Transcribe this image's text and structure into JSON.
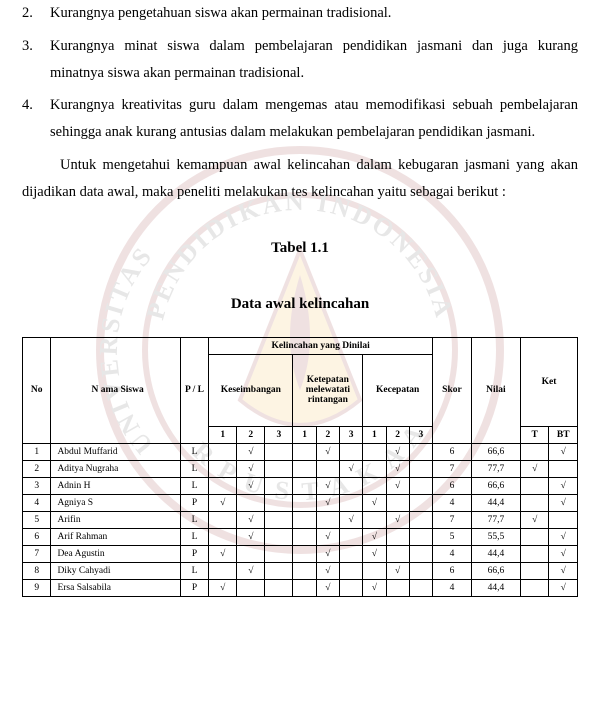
{
  "list": [
    {
      "n": "2.",
      "t": "Kurangnya pengetahuan siswa akan permainan tradisional."
    },
    {
      "n": "3.",
      "t": "Kurangnya minat siswa dalam pembelajaran  pendidikan jasmani dan juga kurang minatnya siswa akan permainan tradisional."
    },
    {
      "n": "4.",
      "t": "Kurangnya kreativitas guru dalam mengemas atau memodifikasi sebuah pembelajaran sehingga anak kurang antusias dalam melakukan pembelajaran pendidikan jasmani."
    }
  ],
  "paragraph": "Untuk mengetahui kemampuan awal kelincahan dalam kebugaran jasmani yang akan dijadikan data awal, maka peneliti melakukan tes kelincahan yaitu sebagai berikut :",
  "table_label": "Tabel 1.1",
  "table_title": "Data awal kelincahan",
  "headers": {
    "no": "No",
    "nama": "N ama Siswa",
    "pl": "P / L",
    "group": "Kelincahan yang Dinilai",
    "kes": "Keseimbangan",
    "ket": "Ketepatan melewatati rintangan",
    "kec": "Kecepatan",
    "skor": "Skor",
    "nilai": "Nilai",
    "ketr": "Ket",
    "t": "T",
    "bt": "BT"
  },
  "rows": [
    {
      "no": "1",
      "name": "Abdul Muffarid",
      "pl": "L",
      "k": [
        "",
        "√",
        "",
        "",
        "√",
        "",
        "",
        "√",
        ""
      ],
      "skor": "6",
      "nilai": "66,6",
      "t": "",
      "bt": "√"
    },
    {
      "no": "2",
      "name": "Aditya Nugraha",
      "pl": "L",
      "k": [
        "",
        "√",
        "",
        "",
        "",
        "√",
        "",
        "√",
        ""
      ],
      "skor": "7",
      "nilai": "77,7",
      "t": "√",
      "bt": ""
    },
    {
      "no": "3",
      "name": "Adnin H",
      "pl": "L",
      "k": [
        "",
        "√",
        "",
        "",
        "√",
        "",
        "",
        "√",
        ""
      ],
      "skor": "6",
      "nilai": "66,6",
      "t": "",
      "bt": "√"
    },
    {
      "no": "4",
      "name": "Agniya S",
      "pl": "P",
      "k": [
        "√",
        "",
        "",
        "",
        "√",
        "",
        "√",
        "",
        ""
      ],
      "skor": "4",
      "nilai": "44,4",
      "t": "",
      "bt": "√"
    },
    {
      "no": "5",
      "name": "Arifin",
      "pl": "L",
      "k": [
        "",
        "√",
        "",
        "",
        "",
        "√",
        "",
        "√",
        ""
      ],
      "skor": "7",
      "nilai": "77,7",
      "t": "√",
      "bt": ""
    },
    {
      "no": "6",
      "name": "Arif Rahman",
      "pl": "L",
      "k": [
        "",
        "√",
        "",
        "",
        "√",
        "",
        "√",
        "",
        ""
      ],
      "skor": "5",
      "nilai": "55,5",
      "t": "",
      "bt": "√"
    },
    {
      "no": "7",
      "name": "Dea Agustin",
      "pl": "P",
      "k": [
        "√",
        "",
        "",
        "",
        "√",
        "",
        "√",
        "",
        ""
      ],
      "skor": "4",
      "nilai": "44,4",
      "t": "",
      "bt": "√"
    },
    {
      "no": "8",
      "name": "Diky Cahyadi",
      "pl": "L",
      "k": [
        "",
        "√",
        "",
        "",
        "√",
        "",
        "",
        "√",
        ""
      ],
      "skor": "6",
      "nilai": "66,6",
      "t": "",
      "bt": "√"
    },
    {
      "no": "9",
      "name": "Ersa Salsabila",
      "pl": "P",
      "k": [
        "√",
        "",
        "",
        "",
        "√",
        "",
        "√",
        "",
        ""
      ],
      "skor": "4",
      "nilai": "44,4",
      "t": "",
      "bt": "√"
    }
  ],
  "watermark": {
    "outer_text_top": "PENDIDIKAN INDONESIA",
    "outer_text_left": "UNIVERSITAS",
    "bottom_text": "PERPUSTAKAAN",
    "ring_color": "#8a1f22",
    "inner_color": "#f2b233",
    "text_color": "#4b4b4b"
  }
}
